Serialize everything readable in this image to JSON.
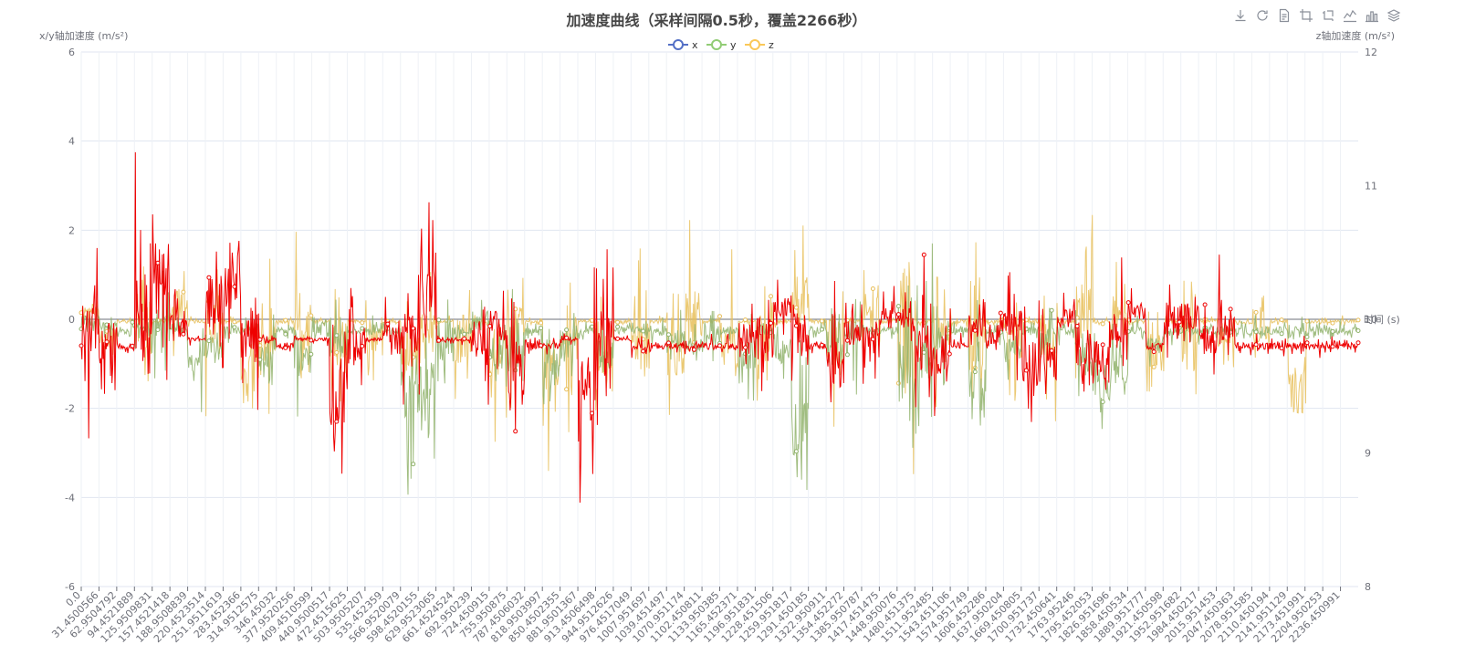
{
  "toolbox": {
    "items": [
      "download-icon",
      "refresh-icon",
      "data-view-icon",
      "zoom-icon",
      "zoom-reset-icon",
      "line-chart-icon",
      "bar-chart-icon",
      "stack-icon"
    ]
  },
  "chart_data": {
    "type": "line",
    "title": "加速度曲线（采样间隔0.5秒，覆盖2266秒）",
    "xlabel": "时间 (s)",
    "ylabel_left": "x/y轴加速度 (m/s²)",
    "ylabel_right": "z轴加速度 (m/s²)",
    "ylim_left": [
      -6,
      6
    ],
    "yticks_left": [
      -6,
      -4,
      -2,
      0,
      2,
      4,
      6
    ],
    "ylim_right": [
      8,
      12
    ],
    "yticks_right": [
      8,
      9,
      10,
      11,
      12
    ],
    "grid": true,
    "legend": {
      "placement": "top-center",
      "entries": [
        "x",
        "y",
        "z"
      ]
    },
    "xticklabels": [
      "0.0",
      "31.4500566",
      "62.9504792",
      "94.4521889",
      "125.9509831",
      "157.4521418",
      "188.9508839",
      "220.4523514",
      "251.9511619",
      "283.452366",
      "314.9512575",
      "346.45032",
      "377.9520256",
      "409.4510599",
      "440.9500517",
      "472.4515625",
      "503.9505207",
      "535.452359",
      "566.9520079",
      "598.4520155",
      "629.9523065",
      "661.4524524",
      "692.950239",
      "724.450915",
      "755.950875",
      "787.4506032",
      "818.9503997",
      "850.4502355",
      "881.9501367",
      "913.4506498",
      "944.9512626",
      "976.4517049",
      "1007.951697",
      "1039.451497",
      "1070.951174",
      "1102.450811",
      "1133.950385",
      "1165.452371",
      "1196.951831",
      "1228.451506",
      "1259.951817",
      "1291.450185",
      "1322.950911",
      "1354.452272",
      "1385.950787",
      "1417.451475",
      "1448.950076",
      "1480.451375",
      "1511.952485",
      "1543.451106",
      "1574.951749",
      "1606.452286",
      "1637.950204",
      "1669.450805",
      "1700.951737",
      "1732.450641",
      "1763.95246",
      "1795.452053",
      "1826.951696",
      "1858.450534",
      "1889.951777",
      "1921.450598",
      "1952.951682",
      "1984.450217",
      "2015.951453",
      "2047.450363",
      "2078.951585",
      "2110.450194",
      "2141.951129",
      "2173.451991",
      "2204.950253",
      "2236.450991"
    ],
    "series": [
      {
        "name": "x",
        "axis": "left",
        "color": "#5470c6",
        "envelope": [
          [
            0,
            -0.2,
            0.6
          ],
          [
            31,
            -1.5,
            0.7
          ],
          [
            63,
            -0.2,
            0.1
          ],
          [
            95,
            -2.6,
            2.2
          ],
          [
            126,
            -0.2,
            0.1
          ],
          [
            157,
            -2.0,
            2.3
          ],
          [
            189,
            -0.2,
            0.1
          ],
          [
            220,
            -2.6,
            2.2
          ],
          [
            252,
            -0.2,
            0.1
          ],
          [
            283,
            -4.0,
            1.6
          ],
          [
            315,
            -2.4,
            1.4
          ],
          [
            346,
            -0.2,
            0.1
          ],
          [
            378,
            -2.8,
            2.2
          ],
          [
            409,
            -0.2,
            0.1
          ],
          [
            441,
            -3.0,
            1.7
          ],
          [
            472,
            -0.2,
            0.1
          ],
          [
            504,
            -2.2,
            1.5
          ],
          [
            535,
            -0.2,
            0.1
          ],
          [
            567,
            -3.0,
            1.4
          ],
          [
            598,
            -1.8,
            1.3
          ],
          [
            630,
            -0.2,
            0.1
          ],
          [
            661,
            -2.8,
            1.9
          ],
          [
            693,
            -0.2,
            0.1
          ],
          [
            724,
            -3.2,
            1.9
          ],
          [
            756,
            -2.4,
            1.9
          ],
          [
            787,
            -0.2,
            0.1
          ],
          [
            819,
            -3.5,
            1.5
          ],
          [
            850,
            -2.6,
            1.8
          ],
          [
            882,
            -0.2,
            0.1
          ],
          [
            913,
            -4.0,
            2.1
          ],
          [
            945,
            -0.2,
            0.1
          ],
          [
            976,
            -2.8,
            1.6
          ],
          [
            1008,
            -0.2,
            0.1
          ],
          [
            1039,
            -3.0,
            1.6
          ],
          [
            1071,
            -3.0,
            2.8
          ],
          [
            1102,
            -0.2,
            0.1
          ],
          [
            1134,
            -2.8,
            1.7
          ],
          [
            1165,
            -0.2,
            0.1
          ],
          [
            1197,
            -3.0,
            2.2
          ],
          [
            1228,
            -0.2,
            0.1
          ],
          [
            1260,
            -1.8,
            2.6
          ],
          [
            1291,
            -0.2,
            0.1
          ],
          [
            1323,
            -2.6,
            1.7
          ],
          [
            1354,
            -0.2,
            0.1
          ],
          [
            1386,
            -3.0,
            2.9
          ],
          [
            1417,
            -0.2,
            0.1
          ],
          [
            1449,
            -4.4,
            2.8
          ],
          [
            1480,
            -0.2,
            0.1
          ],
          [
            1512,
            -2.0,
            1.8
          ],
          [
            1543,
            -0.2,
            0.1
          ],
          [
            1575,
            -3.2,
            2.0
          ],
          [
            1606,
            -0.2,
            0.1
          ],
          [
            1638,
            -2.6,
            1.9
          ],
          [
            1669,
            -0.2,
            0.1
          ],
          [
            1701,
            -2.6,
            1.6
          ],
          [
            1732,
            -0.2,
            0.1
          ],
          [
            1764,
            -2.2,
            2.5
          ],
          [
            1795,
            -0.2,
            0.1
          ],
          [
            1827,
            -1.9,
            2.1
          ],
          [
            1858,
            -0.2,
            0.1
          ],
          [
            1890,
            -2.6,
            1.2
          ],
          [
            1921,
            -0.2,
            0.1
          ],
          [
            1953,
            -3.2,
            2.1
          ],
          [
            1984,
            -0.2,
            0.1
          ],
          [
            2016,
            -1.6,
            1.0
          ],
          [
            2047,
            -0.2,
            0.1
          ],
          [
            2079,
            -1.7,
            1.4
          ],
          [
            2110,
            -0.2,
            0.1
          ],
          [
            2142,
            -3.7,
            0.5
          ],
          [
            2173,
            -0.2,
            0.1
          ],
          [
            2205,
            -0.2,
            0.1
          ],
          [
            2236,
            -0.2,
            0.1
          ]
        ]
      },
      {
        "name": "y",
        "axis": "left",
        "color": "#91cc75",
        "envelope": [
          [
            0,
            -0.6,
            0.5
          ],
          [
            31,
            -0.5,
            0.2
          ],
          [
            63,
            -0.6,
            0.1
          ],
          [
            95,
            -1.1,
            0.6
          ],
          [
            126,
            -1.4,
            1.2
          ],
          [
            157,
            -0.6,
            0.1
          ],
          [
            189,
            -2.2,
            0.7
          ],
          [
            220,
            -1.7,
            0.4
          ],
          [
            252,
            -0.6,
            0.1
          ],
          [
            283,
            -0.6,
            0.1
          ],
          [
            315,
            -2.0,
            0.3
          ],
          [
            346,
            -0.6,
            0.1
          ],
          [
            378,
            -2.6,
            1.0
          ],
          [
            409,
            -1.0,
            0.6
          ],
          [
            441,
            -1.7,
            0.6
          ],
          [
            472,
            -0.6,
            0.1
          ],
          [
            504,
            -0.6,
            0.1
          ],
          [
            535,
            -0.6,
            0.1
          ],
          [
            567,
            -4.6,
            1.6
          ],
          [
            598,
            -4.0,
            1.1
          ],
          [
            630,
            -2.6,
            1.8
          ],
          [
            661,
            -0.6,
            0.1
          ],
          [
            693,
            -1.0,
            0.9
          ],
          [
            724,
            -2.0,
            0.6
          ],
          [
            756,
            -2.3,
            0.7
          ],
          [
            787,
            -0.6,
            0.1
          ],
          [
            819,
            -2.5,
            0.3
          ],
          [
            850,
            -1.8,
            0.7
          ],
          [
            882,
            -0.6,
            0.1
          ],
          [
            913,
            -2.1,
            0.5
          ],
          [
            945,
            -0.6,
            0.1
          ],
          [
            976,
            -0.6,
            0.1
          ],
          [
            1008,
            -0.6,
            0.1
          ],
          [
            1039,
            -1.6,
            0.6
          ],
          [
            1071,
            -1.2,
            0.1
          ],
          [
            1102,
            -1.4,
            0.6
          ],
          [
            1134,
            -0.6,
            0.1
          ],
          [
            1165,
            -2.7,
            0.9
          ],
          [
            1197,
            -0.6,
            0.1
          ],
          [
            1228,
            -2.0,
            0.6
          ],
          [
            1260,
            -5.6,
            0.9
          ],
          [
            1291,
            -0.6,
            0.1
          ],
          [
            1323,
            -2.3,
            1.0
          ],
          [
            1354,
            -2.2,
            1.5
          ],
          [
            1386,
            -0.6,
            0.1
          ],
          [
            1417,
            -0.6,
            0.1
          ],
          [
            1449,
            -4.2,
            1.8
          ],
          [
            1480,
            -3.9,
            2.0
          ],
          [
            1512,
            -1.6,
            0.7
          ],
          [
            1543,
            -0.6,
            0.1
          ],
          [
            1575,
            -5.0,
            1.9
          ],
          [
            1606,
            -0.6,
            0.1
          ],
          [
            1638,
            -2.0,
            0.7
          ],
          [
            1669,
            -0.6,
            0.1
          ],
          [
            1701,
            -1.5,
            0.7
          ],
          [
            1732,
            -0.6,
            0.1
          ],
          [
            1764,
            -2.4,
            0.6
          ],
          [
            1795,
            -3.5,
            0.7
          ],
          [
            1827,
            -2.7,
            0.5
          ],
          [
            1858,
            -0.6,
            0.1
          ],
          [
            1890,
            -1.1,
            0.0
          ],
          [
            1921,
            -0.6,
            0.1
          ],
          [
            1953,
            -0.6,
            0.1
          ],
          [
            1984,
            -0.6,
            0.1
          ],
          [
            2016,
            -0.6,
            0.1
          ],
          [
            2047,
            -0.6,
            0.1
          ],
          [
            2079,
            -0.6,
            0.1
          ],
          [
            2110,
            -0.6,
            0.1
          ],
          [
            2142,
            -0.6,
            0.1
          ],
          [
            2173,
            -0.6,
            0.1
          ],
          [
            2205,
            -0.6,
            0.1
          ],
          [
            2236,
            -0.6,
            0.1
          ]
        ]
      },
      {
        "name": "z",
        "axis": "right",
        "color": "#ee0000",
        "envelope": [
          [
            0,
            9.1,
            10.7
          ],
          [
            31,
            9.0,
            10.6
          ],
          [
            63,
            9.7,
            9.9
          ],
          [
            95,
            8.5,
            11.5
          ],
          [
            126,
            8.9,
            11.6
          ],
          [
            157,
            9.5,
            10.4
          ],
          [
            189,
            9.8,
            9.9
          ],
          [
            220,
            9.1,
            11.1
          ],
          [
            252,
            9.4,
            11.2
          ],
          [
            283,
            9.0,
            10.8
          ],
          [
            315,
            9.8,
            9.9
          ],
          [
            346,
            9.7,
            9.9
          ],
          [
            378,
            9.8,
            9.9
          ],
          [
            409,
            9.8,
            9.9
          ],
          [
            441,
            8.1,
            10.8
          ],
          [
            472,
            9.2,
            10.5
          ],
          [
            504,
            9.8,
            9.9
          ],
          [
            535,
            9.6,
            10.2
          ],
          [
            567,
            9.3,
            10.5
          ],
          [
            598,
            8.9,
            11.5
          ],
          [
            630,
            9.8,
            9.9
          ],
          [
            661,
            9.8,
            9.9
          ],
          [
            693,
            9.3,
            10.4
          ],
          [
            724,
            9.5,
            10.4
          ],
          [
            756,
            8.6,
            10.6
          ],
          [
            787,
            9.7,
            9.9
          ],
          [
            819,
            9.7,
            9.9
          ],
          [
            850,
            9.8,
            9.9
          ],
          [
            882,
            8.5,
            10.4
          ],
          [
            913,
            9.0,
            10.7
          ],
          [
            945,
            9.8,
            9.9
          ],
          [
            976,
            9.7,
            9.9
          ],
          [
            1008,
            9.7,
            9.9
          ],
          [
            1039,
            9.7,
            9.9
          ],
          [
            1071,
            9.7,
            9.9
          ],
          [
            1102,
            9.7,
            9.9
          ],
          [
            1134,
            9.7,
            9.9
          ],
          [
            1165,
            9.3,
            10.4
          ],
          [
            1197,
            9.2,
            10.5
          ],
          [
            1228,
            9.7,
            10.5
          ],
          [
            1260,
            9.3,
            10.4
          ],
          [
            1291,
            9.7,
            9.9
          ],
          [
            1323,
            9.0,
            10.3
          ],
          [
            1354,
            9.4,
            10.4
          ],
          [
            1386,
            9.4,
            10.4
          ],
          [
            1417,
            9.7,
            10.3
          ],
          [
            1449,
            9.6,
            10.4
          ],
          [
            1480,
            8.9,
            10.6
          ],
          [
            1512,
            8.9,
            10.5
          ],
          [
            1543,
            9.7,
            9.9
          ],
          [
            1575,
            9.6,
            10.3
          ],
          [
            1606,
            9.4,
            10.3
          ],
          [
            1638,
            9.5,
            10.4
          ],
          [
            1669,
            8.9,
            10.5
          ],
          [
            1701,
            9.0,
            10.4
          ],
          [
            1732,
            9.7,
            10.3
          ],
          [
            1764,
            9.2,
            10.4
          ],
          [
            1795,
            9.0,
            10.4
          ],
          [
            1827,
            9.4,
            10.5
          ],
          [
            1858,
            9.7,
            10.4
          ],
          [
            1890,
            9.7,
            9.9
          ],
          [
            1921,
            9.5,
            10.5
          ],
          [
            1953,
            9.5,
            10.5
          ],
          [
            1984,
            9.4,
            10.3
          ],
          [
            2016,
            9.4,
            10.5
          ],
          [
            2047,
            9.7,
            9.9
          ],
          [
            2079,
            9.7,
            9.9
          ],
          [
            2110,
            9.7,
            9.9
          ],
          [
            2142,
            9.7,
            9.9
          ],
          [
            2173,
            9.7,
            9.9
          ],
          [
            2205,
            9.7,
            9.9
          ],
          [
            2236,
            9.7,
            9.9
          ]
        ]
      }
    ]
  }
}
